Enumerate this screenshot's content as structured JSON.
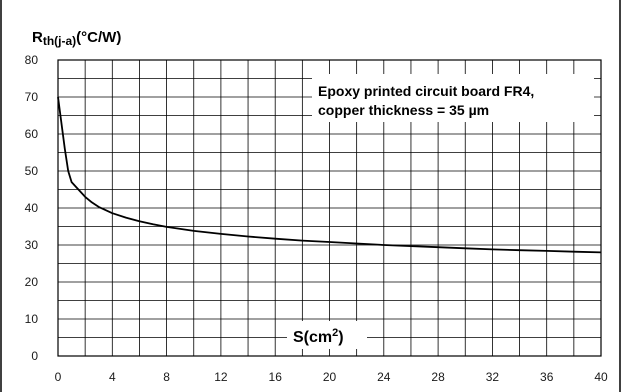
{
  "header_fragment": "",
  "chart_data": {
    "type": "line",
    "title": "",
    "ylabel_main": "R",
    "ylabel_sub": "th(j-a)",
    "ylabel_unit": "(°C/W)",
    "xlabel_main": "S(cm",
    "xlabel_sup": "2",
    "xlabel_end": ")",
    "annotation": [
      "Epoxy printed circuit board FR4,",
      "copper thickness = 35 µm"
    ],
    "xlim": [
      0,
      40
    ],
    "ylim": [
      0,
      80
    ],
    "x_ticks": [
      0,
      4,
      8,
      12,
      16,
      20,
      24,
      28,
      32,
      36,
      40
    ],
    "y_ticks": [
      0,
      10,
      20,
      30,
      40,
      50,
      60,
      70,
      80
    ],
    "grid": true,
    "grid_x_step": 2,
    "grid_y_step": 5,
    "series": [
      {
        "color": "#000000",
        "x": [
          0,
          0.25,
          0.5,
          0.75,
          1,
          1.5,
          2,
          2.5,
          3,
          4,
          5,
          6,
          7,
          8,
          10,
          12,
          14,
          16,
          18,
          20,
          22,
          24,
          26,
          28,
          30,
          32,
          34,
          36,
          38,
          40
        ],
        "y": [
          70,
          63,
          56,
          50,
          47,
          45,
          43,
          41.5,
          40.3,
          38.6,
          37.4,
          36.4,
          35.6,
          34.9,
          33.8,
          33.0,
          32.3,
          31.7,
          31.2,
          30.8,
          30.4,
          30.0,
          29.7,
          29.4,
          29.1,
          28.8,
          28.6,
          28.4,
          28.2,
          28.0
        ]
      }
    ]
  }
}
